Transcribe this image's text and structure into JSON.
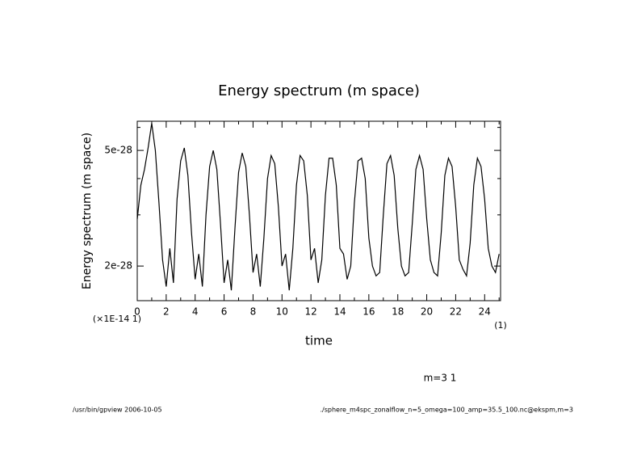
{
  "chart_data": {
    "type": "line",
    "title": "Energy spectrum (m space)",
    "ylabel": "Energy spectrum (m space)",
    "xlabel": "time",
    "x_scale_note": "(×1E-14 1)",
    "x_unit": "(1)",
    "annotation": "m=3 1",
    "footer_left": "/usr/bin/gpview  2006-10-05",
    "footer_right": "./sphere_m4spc_zonalflow_n=5_omega=100_amp=35.5_100.nc@ekspm,m=3",
    "color": "#000000",
    "log_y": true,
    "xlim": [
      0,
      25.1
    ],
    "ylim": [
      1.52e-28,
      6.3e-28
    ],
    "xticks": [
      0,
      2,
      4,
      6,
      8,
      10,
      12,
      14,
      16,
      18,
      20,
      22,
      24
    ],
    "xminor": [
      1,
      3,
      5,
      7,
      9,
      11,
      13,
      15,
      17,
      19,
      21,
      23,
      25
    ],
    "yticks": [
      2e-28,
      5e-28
    ],
    "yminor": [
      3e-28,
      4e-28,
      6e-28
    ],
    "x": [
      0,
      0.25,
      0.5,
      0.75,
      1,
      1.25,
      1.5,
      1.75,
      2,
      2.25,
      2.5,
      2.75,
      3,
      3.25,
      3.5,
      3.75,
      4,
      4.25,
      4.5,
      4.75,
      5,
      5.25,
      5.5,
      5.75,
      6,
      6.25,
      6.5,
      6.75,
      7,
      7.25,
      7.5,
      7.75,
      8,
      8.25,
      8.5,
      8.75,
      9,
      9.25,
      9.5,
      9.75,
      10,
      10.25,
      10.5,
      10.75,
      11,
      11.25,
      11.5,
      11.75,
      12,
      12.25,
      12.5,
      12.75,
      13,
      13.25,
      13.5,
      13.75,
      14,
      14.25,
      14.5,
      14.75,
      15,
      15.25,
      15.5,
      15.75,
      16,
      16.25,
      16.5,
      16.75,
      17,
      17.25,
      17.5,
      17.75,
      18,
      18.25,
      18.5,
      18.75,
      19,
      19.25,
      19.5,
      19.75,
      20,
      20.25,
      20.5,
      20.75,
      21,
      21.25,
      21.5,
      21.75,
      22,
      22.25,
      22.5,
      22.75,
      23,
      23.25,
      23.5,
      23.75,
      24,
      24.25,
      24.5,
      24.75,
      25
    ],
    "values": [
      2.9e-28,
      3.8e-28,
      4.3e-28,
      5.1e-28,
      6.2e-28,
      5e-28,
      3.3e-28,
      2.1e-28,
      1.7e-28,
      2.3e-28,
      1.75e-28,
      3.4e-28,
      4.6e-28,
      5.1e-28,
      4.1e-28,
      2.6e-28,
      1.8e-28,
      2.2e-28,
      1.7e-28,
      3e-28,
      4.4e-28,
      5e-28,
      4.3e-28,
      2.8e-28,
      1.75e-28,
      2.1e-28,
      1.65e-28,
      2.7e-28,
      4.2e-28,
      4.9e-28,
      4.4e-28,
      3e-28,
      1.9e-28,
      2.2e-28,
      1.7e-28,
      2.5e-28,
      4e-28,
      4.8e-28,
      4.5e-28,
      3.2e-28,
      2e-28,
      2.2e-28,
      1.65e-28,
      2.3e-28,
      3.8e-28,
      4.8e-28,
      4.6e-28,
      3.5e-28,
      2.1e-28,
      2.3e-28,
      1.75e-28,
      2.1e-28,
      3.5e-28,
      4.7e-28,
      4.7e-28,
      3.8e-28,
      2.3e-28,
      2.2e-28,
      1.8e-28,
      2e-28,
      3.3e-28,
      4.6e-28,
      4.7e-28,
      4e-28,
      2.5e-28,
      2e-28,
      1.85e-28,
      1.9e-28,
      3e-28,
      4.5e-28,
      4.8e-28,
      4.1e-28,
      2.7e-28,
      2e-28,
      1.85e-28,
      1.9e-28,
      2.8e-28,
      4.3e-28,
      4.8e-28,
      4.3e-28,
      2.9e-28,
      2.1e-28,
      1.9e-28,
      1.85e-28,
      2.6e-28,
      4.1e-28,
      4.7e-28,
      4.4e-28,
      3.2e-28,
      2.1e-28,
      1.95e-28,
      1.85e-28,
      2.4e-28,
      3.8e-28,
      4.7e-28,
      4.4e-28,
      3.4e-28,
      2.3e-28,
      2e-28,
      1.9e-28,
      2.2e-28
    ]
  }
}
